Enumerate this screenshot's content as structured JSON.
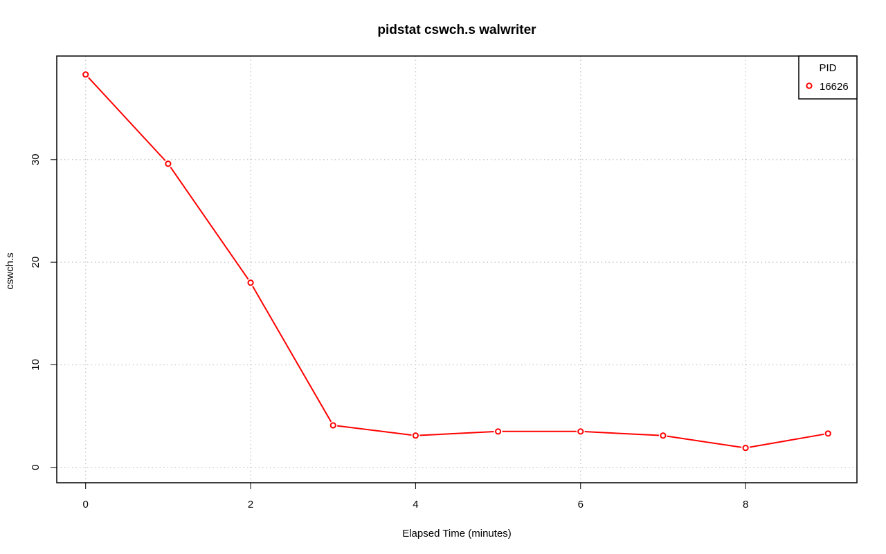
{
  "chart_data": {
    "type": "line",
    "title": "pidstat cswch.s walwriter",
    "xlabel": "Elapsed Time (minutes)",
    "ylabel": "cswch.s",
    "xlim": [
      -0.35,
      9.35
    ],
    "ylim": [
      -1.5,
      40.1
    ],
    "xticks": [
      0,
      2,
      4,
      6,
      8
    ],
    "yticks": [
      0,
      10,
      20,
      30
    ],
    "grid": true,
    "legend_position": "top-right",
    "legend_title": "PID",
    "series": [
      {
        "name": "16626",
        "color": "#ff0000",
        "x": [
          0,
          1,
          2,
          3,
          4,
          5,
          6,
          7,
          8,
          9
        ],
        "y": [
          38.3,
          29.6,
          18.0,
          4.1,
          3.1,
          3.5,
          3.5,
          3.1,
          1.9,
          3.3
        ]
      }
    ]
  }
}
